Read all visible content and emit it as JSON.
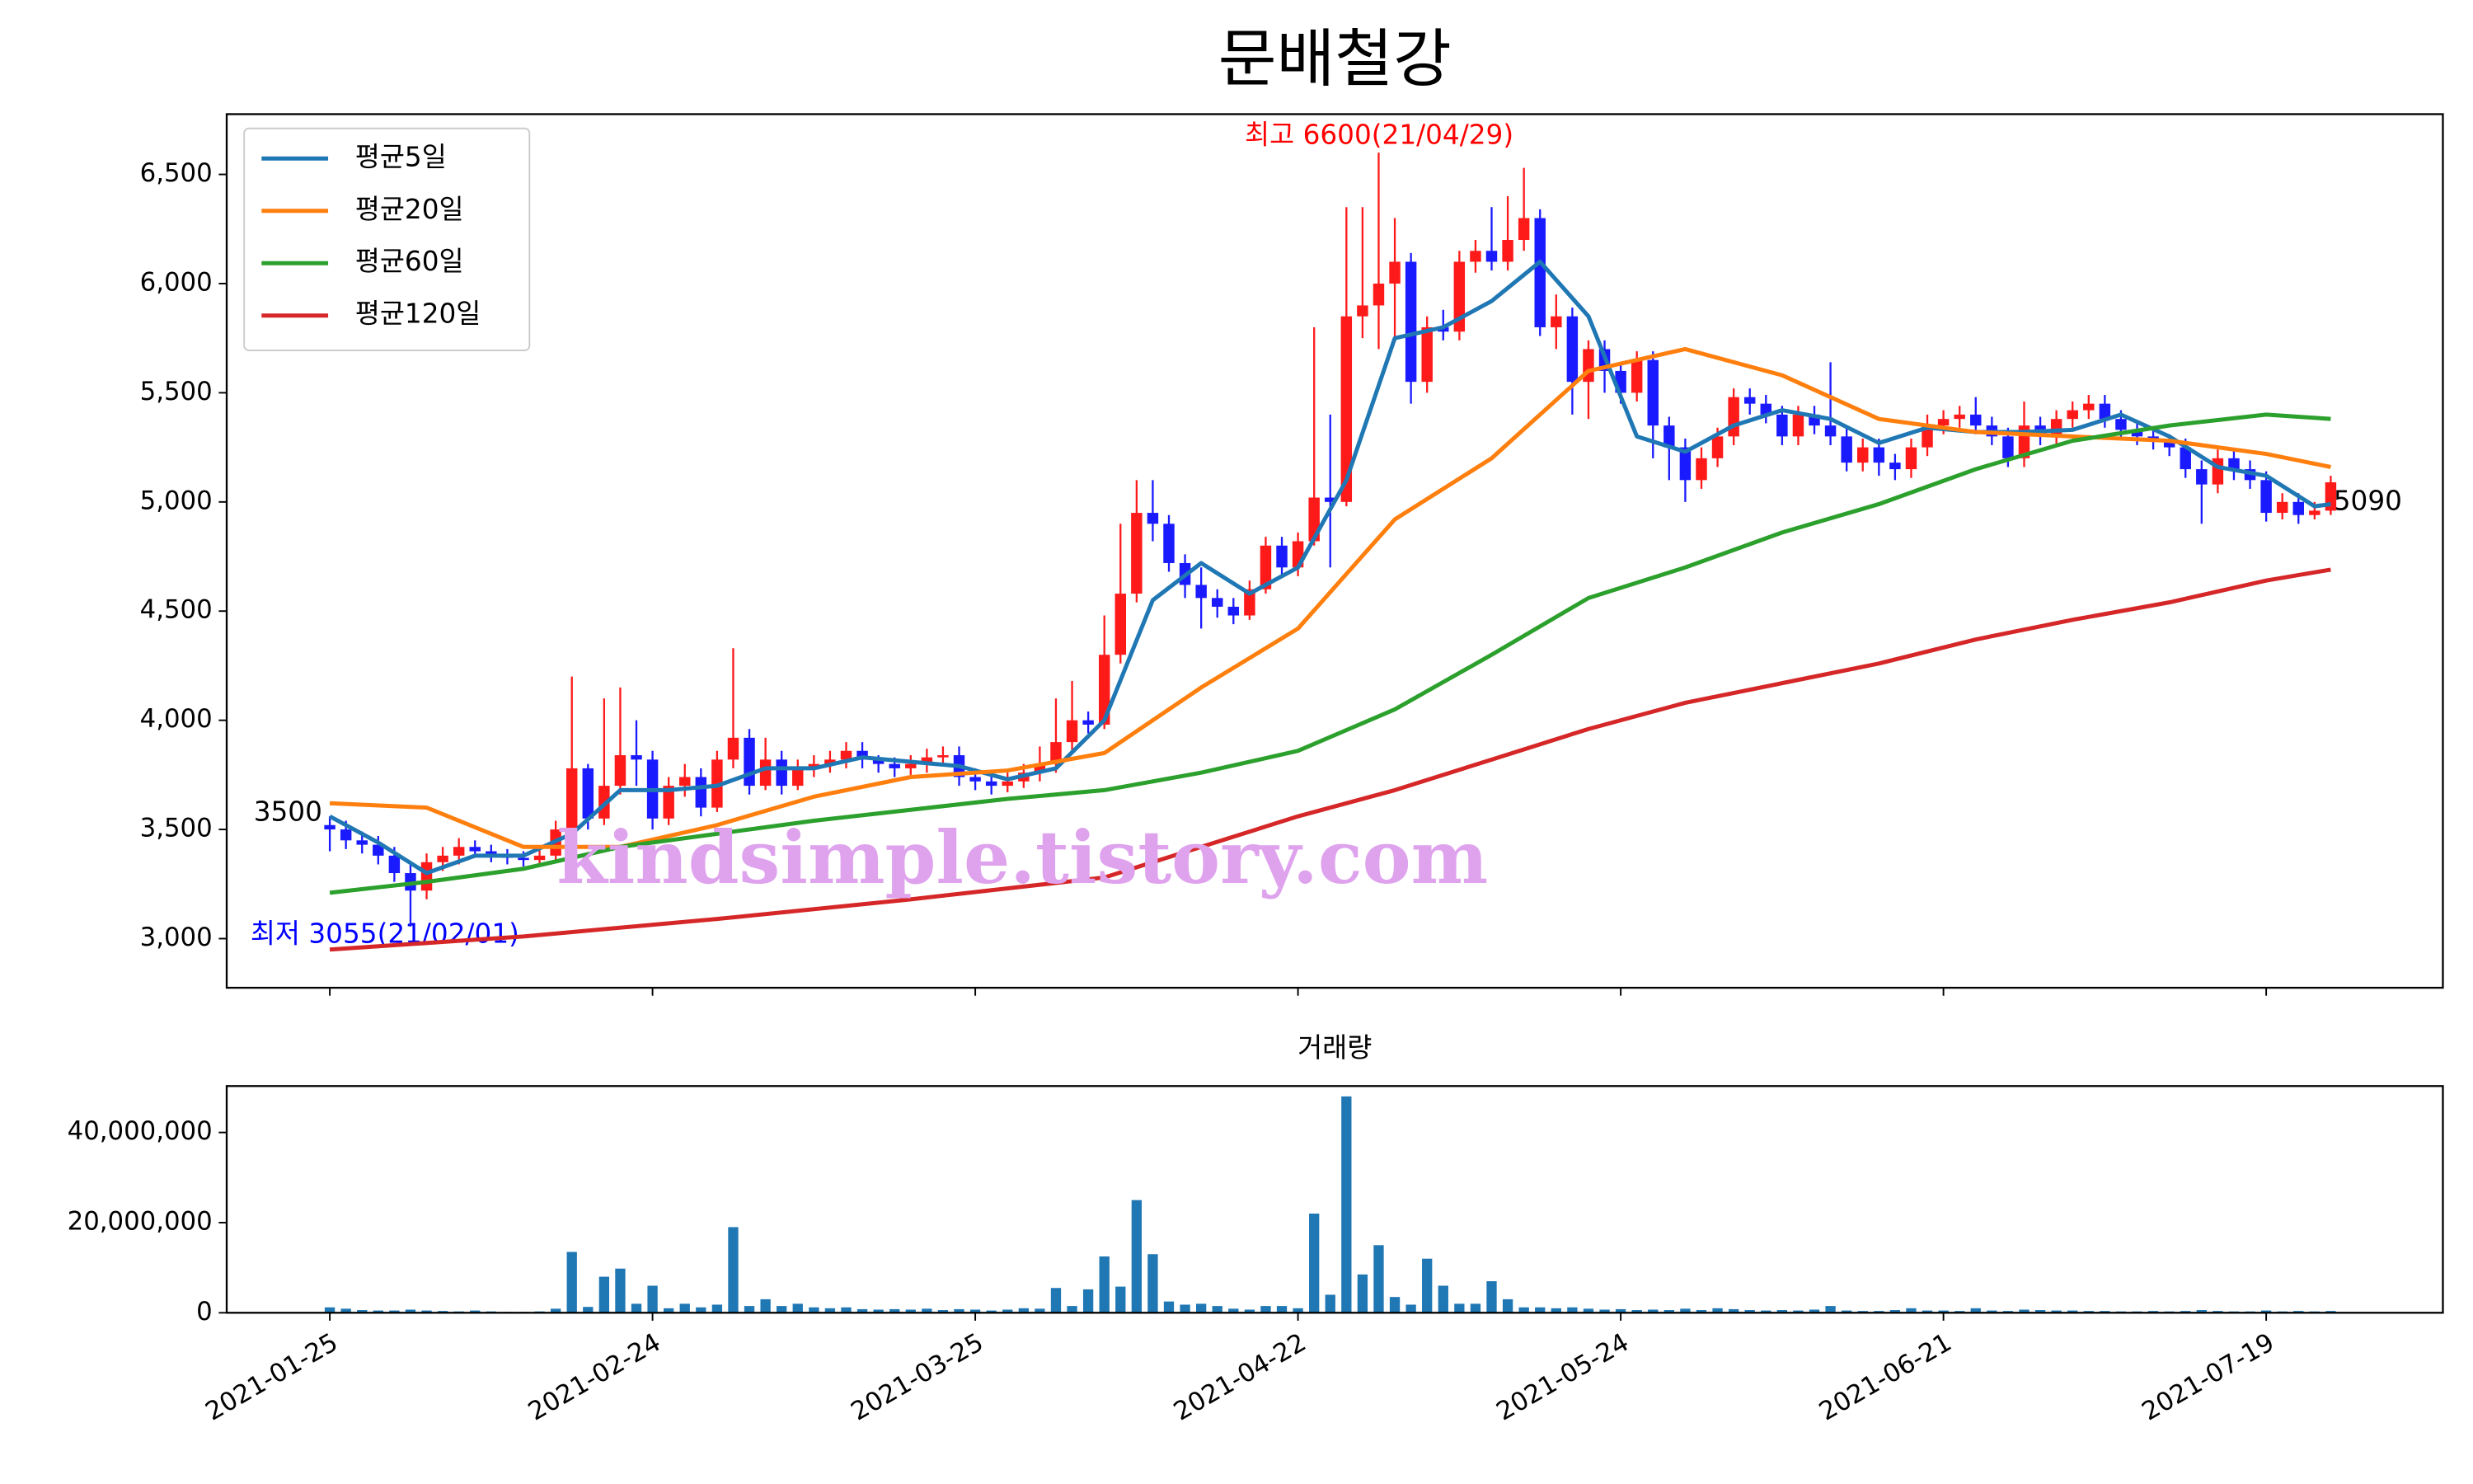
{
  "chart_data": [
    {
      "type": "candlestick",
      "title": "문배철강",
      "up_color": "#ff1a1a",
      "down_color": "#1a1aff",
      "xlim": [
        -6.39,
        130.95
      ],
      "xticks": [
        {
          "value": 0,
          "label": "2021-01-25"
        },
        {
          "value": 20,
          "label": "2021-02-24"
        },
        {
          "value": 40,
          "label": "2021-03-25"
        },
        {
          "value": 60,
          "label": "2021-04-22"
        },
        {
          "value": 80,
          "label": "2021-05-24"
        },
        {
          "value": 100,
          "label": "2021-06-21"
        },
        {
          "value": 120,
          "label": "2021-07-19"
        }
      ],
      "ylim": [
        2775,
        6776
      ],
      "yticks": [
        {
          "value": 3000,
          "label": "3,000"
        },
        {
          "value": 3500,
          "label": "3,500"
        },
        {
          "value": 4000,
          "label": "4,000"
        },
        {
          "value": 4500,
          "label": "4,500"
        },
        {
          "value": 5000,
          "label": "5,000"
        },
        {
          "value": 5500,
          "label": "5,500"
        },
        {
          "value": 6000,
          "label": "6,000"
        },
        {
          "value": 6500,
          "label": "6,500"
        }
      ],
      "legend": "upper left",
      "open": [
        3520,
        3500,
        3450,
        3430,
        3380,
        3300,
        3220,
        3350,
        3380,
        3420,
        3400,
        3380,
        3370,
        3360,
        3380,
        3500,
        3780,
        3550,
        3700,
        3840,
        3820,
        3550,
        3700,
        3740,
        3600,
        3820,
        3920,
        3700,
        3820,
        3700,
        3780,
        3800,
        3820,
        3860,
        3820,
        3800,
        3780,
        3800,
        3830,
        3840,
        3740,
        3720,
        3700,
        3720,
        3760,
        3800,
        3900,
        4000,
        3980,
        4300,
        4580,
        4950,
        4900,
        4720,
        4620,
        4560,
        4520,
        4480,
        4600,
        4800,
        4700,
        4820,
        5020,
        5000,
        5850,
        5900,
        6000,
        6100,
        5550,
        5800,
        5780,
        6100,
        6150,
        6100,
        6200,
        6300,
        5800,
        5850,
        5550,
        5700,
        5600,
        5500,
        5650,
        5350,
        5250,
        5100,
        5200,
        5300,
        5480,
        5450,
        5400,
        5300,
        5400,
        5350,
        5300,
        5180,
        5250,
        5180,
        5150,
        5250,
        5350,
        5380,
        5400,
        5350,
        5300,
        5200,
        5350,
        5300,
        5380,
        5420,
        5450,
        5380,
        5330,
        5300,
        5280,
        5250,
        5150,
        5080,
        5200,
        5150,
        5100,
        4950,
        5000,
        4940,
        4960
      ],
      "high": [
        3560,
        3540,
        3490,
        3470,
        3420,
        3340,
        3390,
        3420,
        3460,
        3450,
        3430,
        3410,
        3400,
        3420,
        3540,
        4200,
        3800,
        4100,
        4150,
        4000,
        3860,
        3740,
        3800,
        3780,
        3860,
        4330,
        3960,
        3920,
        3860,
        3820,
        3840,
        3860,
        3900,
        3900,
        3840,
        3830,
        3840,
        3870,
        3880,
        3880,
        3780,
        3750,
        3760,
        3800,
        3880,
        4100,
        4180,
        4040,
        4480,
        4900,
        5100,
        5100,
        4940,
        4760,
        4700,
        4600,
        4560,
        4640,
        4840,
        4840,
        4860,
        5800,
        5400,
        6350,
        6350,
        6600,
        6300,
        6140,
        5850,
        5880,
        6150,
        6200,
        6350,
        6400,
        6530,
        6340,
        5950,
        5890,
        5740,
        5740,
        5640,
        5690,
        5690,
        5390,
        5290,
        5250,
        5340,
        5520,
        5520,
        5490,
        5440,
        5440,
        5440,
        5640,
        5340,
        5290,
        5290,
        5220,
        5290,
        5400,
        5420,
        5440,
        5480,
        5390,
        5340,
        5460,
        5390,
        5420,
        5460,
        5490,
        5490,
        5420,
        5370,
        5340,
        5310,
        5290,
        5190,
        5240,
        5240,
        5190,
        5140,
        5040,
        5040,
        5000,
        5120
      ],
      "low": [
        3400,
        3410,
        3390,
        3340,
        3260,
        3055,
        3180,
        3310,
        3340,
        3370,
        3350,
        3340,
        3330,
        3330,
        3350,
        3480,
        3500,
        3520,
        3660,
        3700,
        3500,
        3520,
        3650,
        3560,
        3580,
        3780,
        3660,
        3680,
        3660,
        3680,
        3740,
        3760,
        3780,
        3780,
        3760,
        3740,
        3750,
        3760,
        3790,
        3700,
        3680,
        3660,
        3670,
        3690,
        3720,
        3760,
        3860,
        3940,
        3960,
        4260,
        4540,
        4820,
        4680,
        4560,
        4420,
        4470,
        4440,
        4460,
        4580,
        4660,
        4660,
        4800,
        4700,
        4980,
        5750,
        5700,
        5750,
        5450,
        5500,
        5740,
        5740,
        6050,
        6060,
        6060,
        6150,
        5760,
        5700,
        5400,
        5380,
        5500,
        5450,
        5460,
        5200,
        5100,
        5000,
        5060,
        5160,
        5260,
        5400,
        5360,
        5260,
        5260,
        5310,
        5260,
        5140,
        5140,
        5120,
        5100,
        5110,
        5210,
        5310,
        5340,
        5310,
        5260,
        5160,
        5160,
        5260,
        5260,
        5340,
        5380,
        5340,
        5290,
        5260,
        5240,
        5210,
        5110,
        4900,
        5040,
        5100,
        5060,
        4910,
        4920,
        4900,
        4920,
        4940
      ],
      "close": [
        3500,
        3450,
        3430,
        3380,
        3300,
        3220,
        3350,
        3380,
        3420,
        3400,
        3380,
        3370,
        3360,
        3380,
        3500,
        3780,
        3550,
        3700,
        3840,
        3820,
        3550,
        3700,
        3740,
        3600,
        3820,
        3920,
        3700,
        3820,
        3700,
        3780,
        3800,
        3820,
        3860,
        3820,
        3800,
        3780,
        3800,
        3830,
        3840,
        3740,
        3720,
        3700,
        3720,
        3760,
        3800,
        3900,
        4000,
        3980,
        4300,
        4580,
        4950,
        4900,
        4720,
        4620,
        4560,
        4520,
        4480,
        4600,
        4800,
        4700,
        4820,
        5020,
        5000,
        5850,
        5900,
        6000,
        6100,
        5550,
        5800,
        5780,
        6100,
        6150,
        6100,
        6200,
        6300,
        5800,
        5850,
        5550,
        5700,
        5600,
        5500,
        5650,
        5350,
        5250,
        5100,
        5200,
        5300,
        5480,
        5450,
        5400,
        5300,
        5400,
        5350,
        5300,
        5180,
        5250,
        5180,
        5150,
        5250,
        5350,
        5380,
        5400,
        5350,
        5300,
        5200,
        5350,
        5300,
        5380,
        5420,
        5450,
        5380,
        5330,
        5300,
        5280,
        5250,
        5150,
        5080,
        5200,
        5150,
        5100,
        4950,
        5000,
        4940,
        4960,
        5090
      ],
      "series": [
        {
          "name": "평균5일",
          "color": "#1f77b4",
          "x": [
            0,
            3,
            6,
            9,
            12,
            15,
            18,
            21,
            24,
            27,
            30,
            33,
            36,
            39,
            42,
            45,
            48,
            51,
            54,
            57,
            60,
            63,
            66,
            69,
            72,
            75,
            78,
            81,
            84,
            87,
            90,
            93,
            96,
            99,
            102,
            105,
            108,
            111,
            114,
            117,
            120,
            123,
            124
          ],
          "values": [
            3560,
            3440,
            3300,
            3380,
            3380,
            3480,
            3680,
            3680,
            3700,
            3780,
            3780,
            3830,
            3810,
            3790,
            3730,
            3780,
            4000,
            4550,
            4720,
            4580,
            4700,
            5100,
            5750,
            5800,
            5920,
            6100,
            5850,
            5300,
            5230,
            5350,
            5420,
            5380,
            5270,
            5340,
            5320,
            5320,
            5330,
            5400,
            5300,
            5160,
            5120,
            4980,
            4990
          ]
        },
        {
          "name": "평균20일",
          "color": "#ff7f0e",
          "x": [
            0,
            6,
            12,
            18,
            24,
            30,
            36,
            42,
            48,
            54,
            60,
            66,
            72,
            78,
            84,
            90,
            96,
            102,
            108,
            114,
            120,
            124
          ],
          "values": [
            3620,
            3600,
            3420,
            3420,
            3520,
            3650,
            3740,
            3770,
            3850,
            4150,
            4420,
            4920,
            5200,
            5600,
            5700,
            5580,
            5380,
            5320,
            5300,
            5280,
            5220,
            5160
          ]
        },
        {
          "name": "평균60일",
          "color": "#2ca02c",
          "x": [
            0,
            6,
            12,
            18,
            24,
            30,
            36,
            42,
            48,
            54,
            60,
            66,
            72,
            78,
            84,
            90,
            96,
            102,
            108,
            114,
            120,
            124
          ],
          "values": [
            3210,
            3260,
            3320,
            3420,
            3480,
            3540,
            3590,
            3640,
            3680,
            3760,
            3860,
            4050,
            4300,
            4560,
            4700,
            4860,
            4990,
            5150,
            5280,
            5350,
            5400,
            5380
          ]
        },
        {
          "name": "평균120일",
          "color": "#d62728",
          "x": [
            0,
            12,
            24,
            36,
            48,
            60,
            66,
            72,
            78,
            84,
            90,
            96,
            102,
            108,
            114,
            120,
            124
          ],
          "values": [
            2950,
            3010,
            3090,
            3180,
            3280,
            3560,
            3680,
            3820,
            3960,
            4080,
            4170,
            4260,
            4370,
            4460,
            4540,
            4640,
            4690
          ]
        }
      ],
      "annotations": [
        "최고 6600(21/04/29)",
        "최저 3055(21/02/01)",
        "3500",
        "5090"
      ],
      "watermark": "kindsimple.tistory.com"
    },
    {
      "type": "bar",
      "title": "거래량",
      "color": "#1f77b4",
      "xlim": [
        -6.39,
        130.95
      ],
      "ylim": [
        0,
        50300000
      ],
      "yticks": [
        {
          "value": 0,
          "label": "0"
        },
        {
          "value": 20000000,
          "label": "20,000,000"
        },
        {
          "value": 40000000,
          "label": "40,000,000"
        }
      ],
      "values": [
        1200000,
        900000,
        600000,
        500000,
        500000,
        700000,
        500000,
        400000,
        300000,
        500000,
        300000,
        200000,
        200000,
        300000,
        900000,
        13500000,
        1300000,
        8000000,
        9800000,
        2000000,
        6000000,
        1000000,
        2000000,
        1200000,
        1800000,
        19000000,
        1500000,
        3000000,
        1500000,
        2000000,
        1200000,
        1000000,
        1200000,
        800000,
        700000,
        800000,
        700000,
        900000,
        600000,
        800000,
        700000,
        500000,
        700000,
        1000000,
        900000,
        5500000,
        1500000,
        5200000,
        12500000,
        5800000,
        25000000,
        13000000,
        2500000,
        1800000,
        2000000,
        1500000,
        900000,
        700000,
        1500000,
        1500000,
        1000000,
        22000000,
        4000000,
        48000000,
        8500000,
        15000000,
        3500000,
        1800000,
        12000000,
        6000000,
        2000000,
        2000000,
        7000000,
        3000000,
        1200000,
        1200000,
        1000000,
        1200000,
        900000,
        700000,
        800000,
        600000,
        700000,
        600000,
        900000,
        600000,
        1000000,
        800000,
        600000,
        500000,
        600000,
        500000,
        700000,
        1500000,
        500000,
        400000,
        400000,
        600000,
        1000000,
        500000,
        500000,
        400000,
        1000000,
        500000,
        400000,
        700000,
        600000,
        500000,
        500000,
        400000,
        400000,
        300000,
        300000,
        400000,
        300000,
        400000,
        600000,
        400000,
        300000,
        300000,
        500000,
        300000,
        400000,
        300000,
        400000
      ]
    }
  ]
}
